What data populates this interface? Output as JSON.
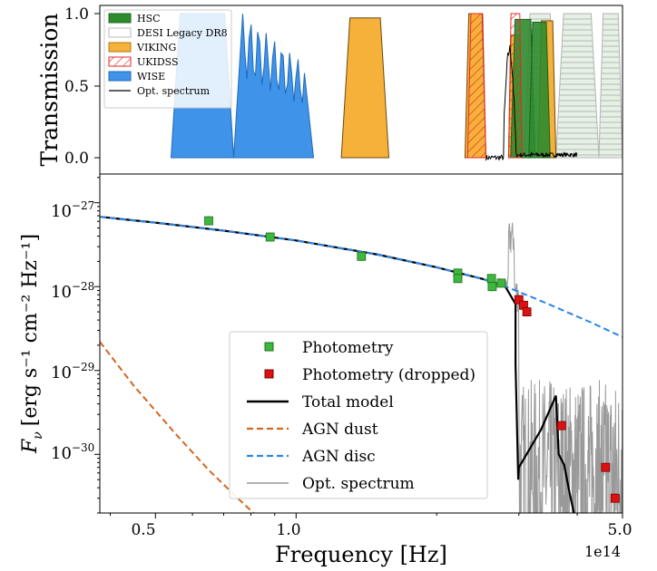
{
  "chart_data": [
    {
      "type": "area",
      "panel": "top",
      "ylabel": "Transmission",
      "ylim": [
        0,
        1.05
      ],
      "yticks": [
        "0.0",
        "0.5",
        "1.0"
      ],
      "xscale": "log",
      "legend": {
        "placement": "top-left",
        "entries": [
          "HSC",
          "DESI Legacy DR8",
          "VIKING",
          "UKIDSS",
          "WISE",
          "Opt. spectrum"
        ]
      },
      "colors": {
        "HSC": "#2e8b2e",
        "DESI Legacy DR8": "#dcdcdc",
        "VIKING": "#f5a623",
        "UKIDSS": "#e8282b",
        "WISE": "#2a86e8",
        "Opt. spectrum": "#000000"
      },
      "bands": {
        "WISE": [
          {
            "range": [
              0.54,
              0.735
            ],
            "peak": 1.0
          },
          {
            "range": [
              0.735,
              1.09
            ],
            "peak": 1.0
          }
        ],
        "VIKING": [
          {
            "range": [
              1.25,
              1.58
            ],
            "peak": 0.97
          },
          {
            "range": [
              2.3,
              2.55
            ],
            "peak": 1.0
          },
          {
            "range": [
              2.85,
              3.05
            ],
            "peak": 0.85
          },
          {
            "range": [
              3.3,
              3.6
            ],
            "peak": 0.95
          }
        ],
        "UKIDSS": [
          {
            "range": [
              2.33,
              2.55
            ],
            "peak": 1.0
          },
          {
            "range": [
              2.85,
              3.05
            ],
            "peak": 1.0
          }
        ],
        "HSC": [
          {
            "range": [
              2.88,
              3.25
            ],
            "peak": 0.96
          },
          {
            "range": [
              3.15,
              3.5
            ],
            "peak": 0.94
          }
        ],
        "DESI Legacy DR8": [
          {
            "range": [
              3.08,
              3.6
            ],
            "peak": 1.0
          },
          {
            "range": [
              3.6,
              4.45
            ],
            "peak": 1.0
          },
          {
            "range": [
              4.45,
              5.0
            ],
            "peak": 1.0
          }
        ]
      }
    },
    {
      "type": "line",
      "panel": "bottom",
      "xlabel": "Frequency [Hz]",
      "xscale": "log",
      "xlim": [
        0.38,
        5.0
      ],
      "x_offset_label": "1e14",
      "xticks": [
        "0.5",
        "1.0",
        "5.0"
      ],
      "ylabel_prefix": "F",
      "ylabel_sub": "ν",
      "ylabel_units": "[erg s⁻¹ cm⁻² Hz⁻¹]",
      "yscale": "log",
      "ylim": [
        2e-31,
        2.2e-27
      ],
      "yticks": [
        {
          "base": "10",
          "exp": "−27"
        },
        {
          "base": "10",
          "exp": "−28"
        },
        {
          "base": "10",
          "exp": "−29"
        },
        {
          "base": "10",
          "exp": "−30"
        }
      ],
      "legend": {
        "placement": "lower-center",
        "entries": [
          "Photometry",
          "Photometry (dropped)",
          "Total model",
          "AGN dust",
          "AGN disc",
          "Opt. spectrum"
        ]
      },
      "colors": {
        "Photometry": "#3cb83c",
        "Photometry (dropped)": "#dd1111",
        "Total model": "#000000",
        "AGN dust": "#d4661e",
        "AGN disc": "#2a86e8",
        "Opt. spectrum": "#999999"
      },
      "series": [
        {
          "name": "Photometry",
          "x": [
            0.65,
            0.88,
            1.38,
            2.22,
            2.22,
            2.62,
            2.63,
            2.75
          ],
          "y": [
            6.1e-28,
            3.9e-28,
            2.3e-28,
            1.45e-28,
            1.25e-28,
            1.25e-28,
            1e-28,
            1.1e-28
          ]
        },
        {
          "name": "Photometry (dropped)",
          "x": [
            3.0,
            3.07,
            3.12,
            3.7,
            4.6,
            4.82
          ],
          "y": [
            7e-29,
            6e-29,
            5e-29,
            2.2e-30,
            7e-31,
            3e-31
          ]
        },
        {
          "name": "AGN disc",
          "x": [
            0.38,
            0.5,
            0.7,
            1.0,
            1.5,
            2.0,
            2.5,
            2.75,
            3.2,
            3.7,
            4.3,
            5.0
          ],
          "y": [
            6.8e-28,
            5.8e-28,
            4.65e-28,
            3.55e-28,
            2.4e-28,
            1.7e-28,
            1.24e-28,
            1.05e-28,
            7.5e-29,
            5.3e-29,
            3.7e-29,
            2.5e-29
          ]
        },
        {
          "name": "AGN dust",
          "x": [
            0.38,
            0.45,
            0.55,
            0.65,
            0.75,
            0.88
          ],
          "y": [
            2.2e-29,
            6.5e-30,
            1.8e-30,
            6.5e-31,
            3e-31,
            1.3e-31
          ]
        },
        {
          "name": "Total model",
          "x": [
            0.38,
            0.5,
            0.7,
            1.0,
            1.5,
            2.0,
            2.5,
            2.8,
            2.95,
            2.95,
            2.99,
            3.0,
            3.35,
            3.6,
            3.65,
            3.75,
            3.85,
            3.97
          ],
          "y": [
            6.8e-28,
            5.8e-28,
            4.65e-28,
            3.55e-28,
            2.4e-28,
            1.7e-28,
            1.24e-28,
            1.02e-28,
            6.2e-29,
            1.2e-29,
            5e-31,
            7e-31,
            2e-30,
            5e-30,
            1e-30,
            7.5e-31,
            3.5e-31,
            1.6e-31
          ]
        }
      ]
    }
  ]
}
